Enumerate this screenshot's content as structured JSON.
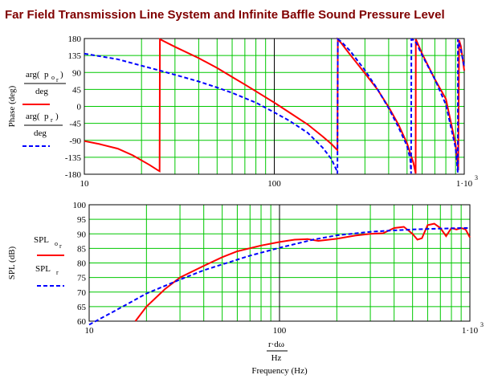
{
  "title": "Far Field Transmission Line System and Infinite Baffle Sound Pressure Level",
  "colors": {
    "grid_minor": "#00c800",
    "grid_major": "#000000",
    "series1": "#ff0000",
    "series2": "#0000ff",
    "title": "#800000"
  },
  "chart_data": [
    {
      "type": "line",
      "x_scale": "log",
      "xlim": [
        10,
        1000
      ],
      "ylim": [
        -180,
        180
      ],
      "ylabel": "Phase (deg)",
      "x_tick_labels": [
        "10",
        "100",
        "1·10"
      ],
      "x_tick_exp": "3",
      "y_ticks": [
        180,
        135,
        90,
        45,
        0,
        -45,
        -90,
        -135,
        -180
      ],
      "y_tick_labels": [
        "180",
        "135",
        "90",
        "45",
        "0",
        "-45",
        "-90",
        "-135",
        "-180"
      ],
      "legend": {
        "s1_a": "arg",
        "s1_b": "p",
        "s1_c": "o",
        "s1_d": "r",
        "s1_den": "deg",
        "s2_a": "arg",
        "s2_b": "p",
        "s2_d": "r",
        "s2_den": "deg"
      },
      "series": [
        {
          "color": "#ff0000",
          "style": "solid",
          "x": [
            10,
            12,
            15,
            18,
            22,
            24.5,
            24.9,
            25,
            30,
            40,
            50,
            60,
            70,
            80,
            100,
            120,
            150,
            180,
            200,
            215,
            216,
            225,
            250,
            300,
            350,
            400,
            450,
            500,
            540,
            555,
            556,
            560,
            600,
            700,
            800,
            900,
            930,
            940,
            960,
            1000
          ],
          "y": [
            -92,
            -100,
            -112,
            -130,
            -155,
            -170,
            -172,
            178,
            158,
            128,
            102,
            78,
            58,
            40,
            10,
            -16,
            -48,
            -80,
            -100,
            -116,
            178,
            168,
            138,
            88,
            44,
            -2,
            -48,
            -98,
            -150,
            -178,
            178,
            175,
            140,
            72,
            20,
            -100,
            -170,
            176,
            160,
            95
          ]
        },
        {
          "color": "#0000ff",
          "style": "dashed",
          "x": [
            10,
            15,
            20,
            25,
            30,
            40,
            50,
            60,
            70,
            80,
            100,
            120,
            150,
            180,
            200,
            214,
            215,
            216,
            225,
            250,
            300,
            350,
            400,
            450,
            500,
            520,
            525,
            527,
            540,
            560,
            600,
            700,
            800,
            900,
            925,
            926,
            930,
            960,
            1000
          ],
          "y": [
            140,
            125,
            108,
            95,
            84,
            66,
            50,
            36,
            22,
            10,
            -16,
            -38,
            -70,
            -110,
            -140,
            -172,
            -178,
            178,
            172,
            148,
            96,
            45,
            -5,
            -55,
            -105,
            -140,
            -178,
            178,
            176,
            168,
            136,
            72,
            5,
            -110,
            -176,
            178,
            174,
            150,
            105
          ]
        }
      ]
    },
    {
      "type": "line",
      "x_scale": "log",
      "xlim": [
        10,
        1000
      ],
      "ylim": [
        60,
        100
      ],
      "ylabel": "SPL (dB)",
      "xlabel": "Frequency (Hz)",
      "x_label_num": "r·dω",
      "x_label_den": "Hz",
      "x_tick_labels": [
        "10",
        "100",
        "1·10"
      ],
      "x_tick_exp": "3",
      "y_ticks": [
        100,
        95,
        90,
        85,
        80,
        75,
        70,
        65,
        60
      ],
      "y_tick_labels": [
        "100",
        "95",
        "90",
        "85",
        "80",
        "75",
        "70",
        "65",
        "60"
      ],
      "legend": {
        "s1_a": "SPL",
        "s1_c": "o",
        "s1_d": "r",
        "s2_a": "SPL",
        "s2_d": "r"
      },
      "series": [
        {
          "color": "#ff0000",
          "style": "solid",
          "x": [
            17.5,
            20,
            25,
            30,
            40,
            50,
            60,
            80,
            100,
            120,
            140,
            160,
            200,
            250,
            300,
            350,
            400,
            450,
            500,
            530,
            560,
            600,
            650,
            700,
            750,
            800,
            850,
            900,
            950,
            1000
          ],
          "y": [
            60,
            65,
            71,
            75,
            79,
            82,
            84,
            86,
            87.2,
            88,
            88.2,
            87.6,
            88.3,
            89.4,
            90,
            90.2,
            92,
            92.4,
            90,
            88,
            88.5,
            93,
            93.5,
            92,
            89.2,
            92,
            91.5,
            92,
            91.5,
            88.8
          ]
        },
        {
          "color": "#0000ff",
          "style": "dashed",
          "x": [
            10,
            15,
            20,
            30,
            40,
            50,
            70,
            100,
            150,
            200,
            300,
            400,
            500,
            600,
            700,
            800,
            900,
            950,
            1000
          ],
          "y": [
            58.8,
            65,
            69.5,
            74.3,
            77.5,
            79.5,
            82.5,
            85.2,
            88,
            89.5,
            90.7,
            91.2,
            91.5,
            91.7,
            91.8,
            91.9,
            92,
            92,
            92
          ]
        }
      ]
    }
  ]
}
